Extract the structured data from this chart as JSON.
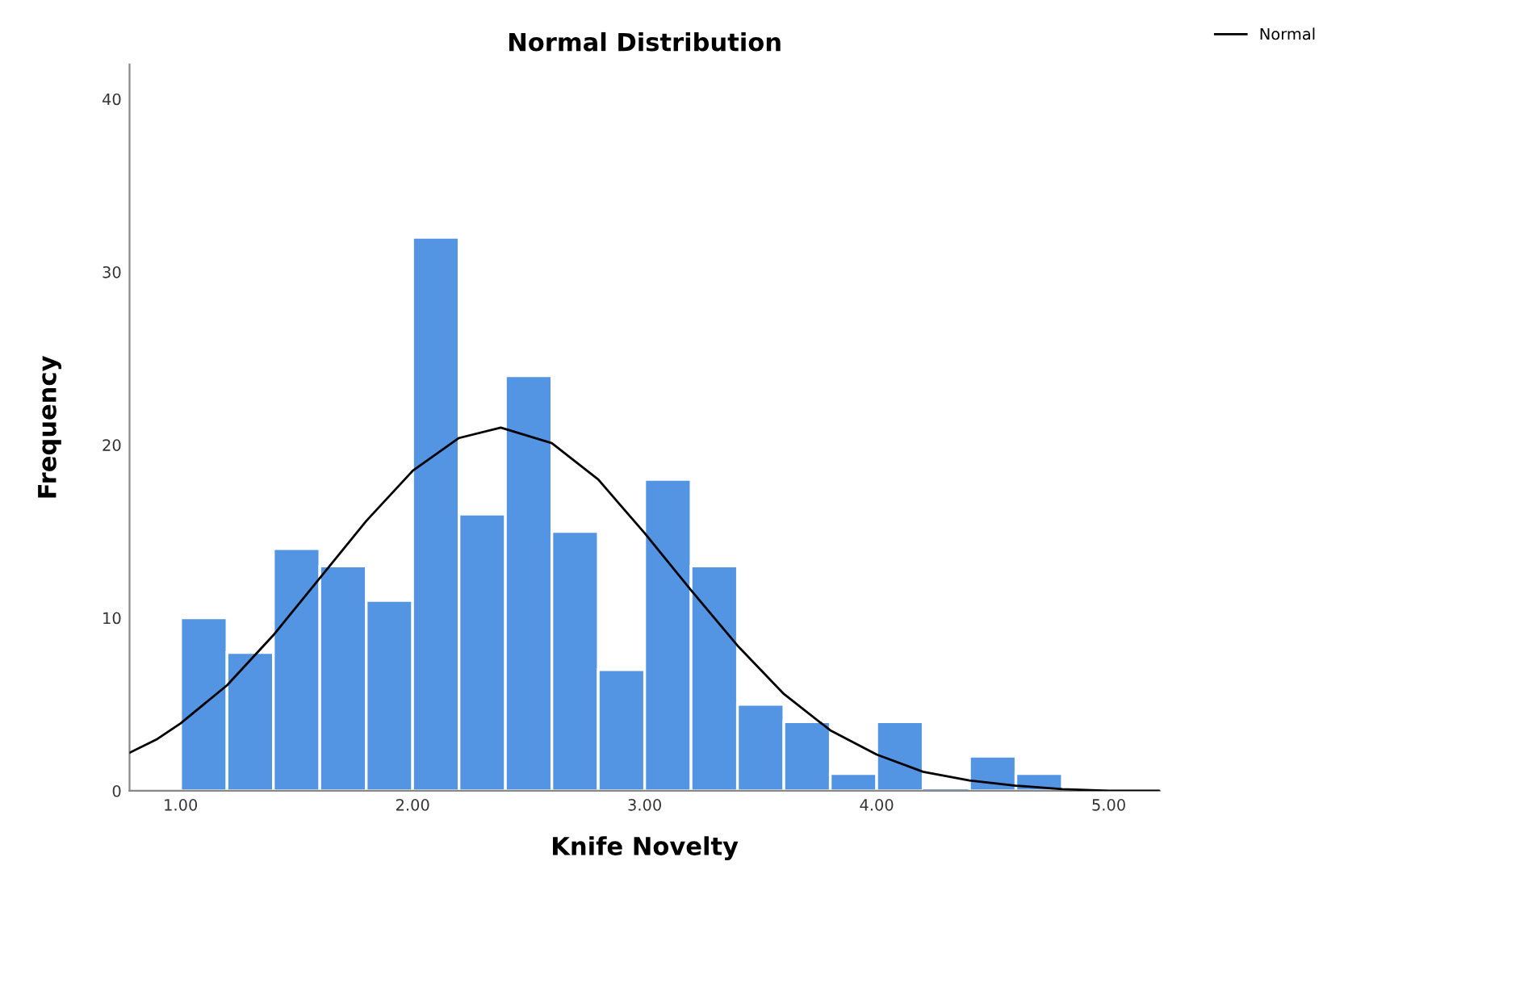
{
  "chart_data": {
    "type": "histogram",
    "title": "Normal Distribution",
    "xlabel": "Knife Novelty",
    "ylabel": "Frequency",
    "bins": [
      1.0,
      1.2,
      1.4,
      1.6,
      1.8,
      2.0,
      2.2,
      2.4,
      2.6,
      2.8,
      3.0,
      3.2,
      3.4,
      3.6,
      3.8,
      4.0,
      4.2,
      4.4,
      4.6,
      4.8
    ],
    "values": [
      10,
      8,
      14,
      13,
      11,
      32,
      16,
      24,
      15,
      7,
      18,
      13,
      5,
      4,
      1,
      4,
      0,
      2,
      1
    ],
    "color": "#5394e3",
    "series": [
      {
        "type": "line",
        "name": "Normal",
        "color": "#000000",
        "x": [
          0.78,
          0.9,
          1.0,
          1.2,
          1.4,
          1.6,
          1.8,
          2.0,
          2.2,
          2.38,
          2.6,
          2.8,
          3.0,
          3.2,
          3.4,
          3.6,
          3.8,
          4.0,
          4.2,
          4.4,
          4.6,
          4.8,
          5.0,
          5.22
        ],
        "values": [
          2.2,
          3.0,
          3.9,
          6.1,
          9.0,
          12.3,
          15.6,
          18.5,
          20.4,
          21,
          20.1,
          18.0,
          14.9,
          11.6,
          8.4,
          5.6,
          3.5,
          2.1,
          1.1,
          0.6,
          0.3,
          0.1,
          0,
          0
        ]
      }
    ],
    "xlim": [
      0.78,
      5.22
    ],
    "ylim": [
      0,
      42
    ],
    "xticks": [
      {
        "value": 1,
        "label": "1.00"
      },
      {
        "value": 2,
        "label": "2.00"
      },
      {
        "value": 3,
        "label": "3.00"
      },
      {
        "value": 4,
        "label": "4.00"
      },
      {
        "value": 5,
        "label": "5.00"
      }
    ],
    "yticks": [
      0,
      10,
      20,
      30,
      40
    ],
    "grid": false,
    "legend": "top right"
  }
}
